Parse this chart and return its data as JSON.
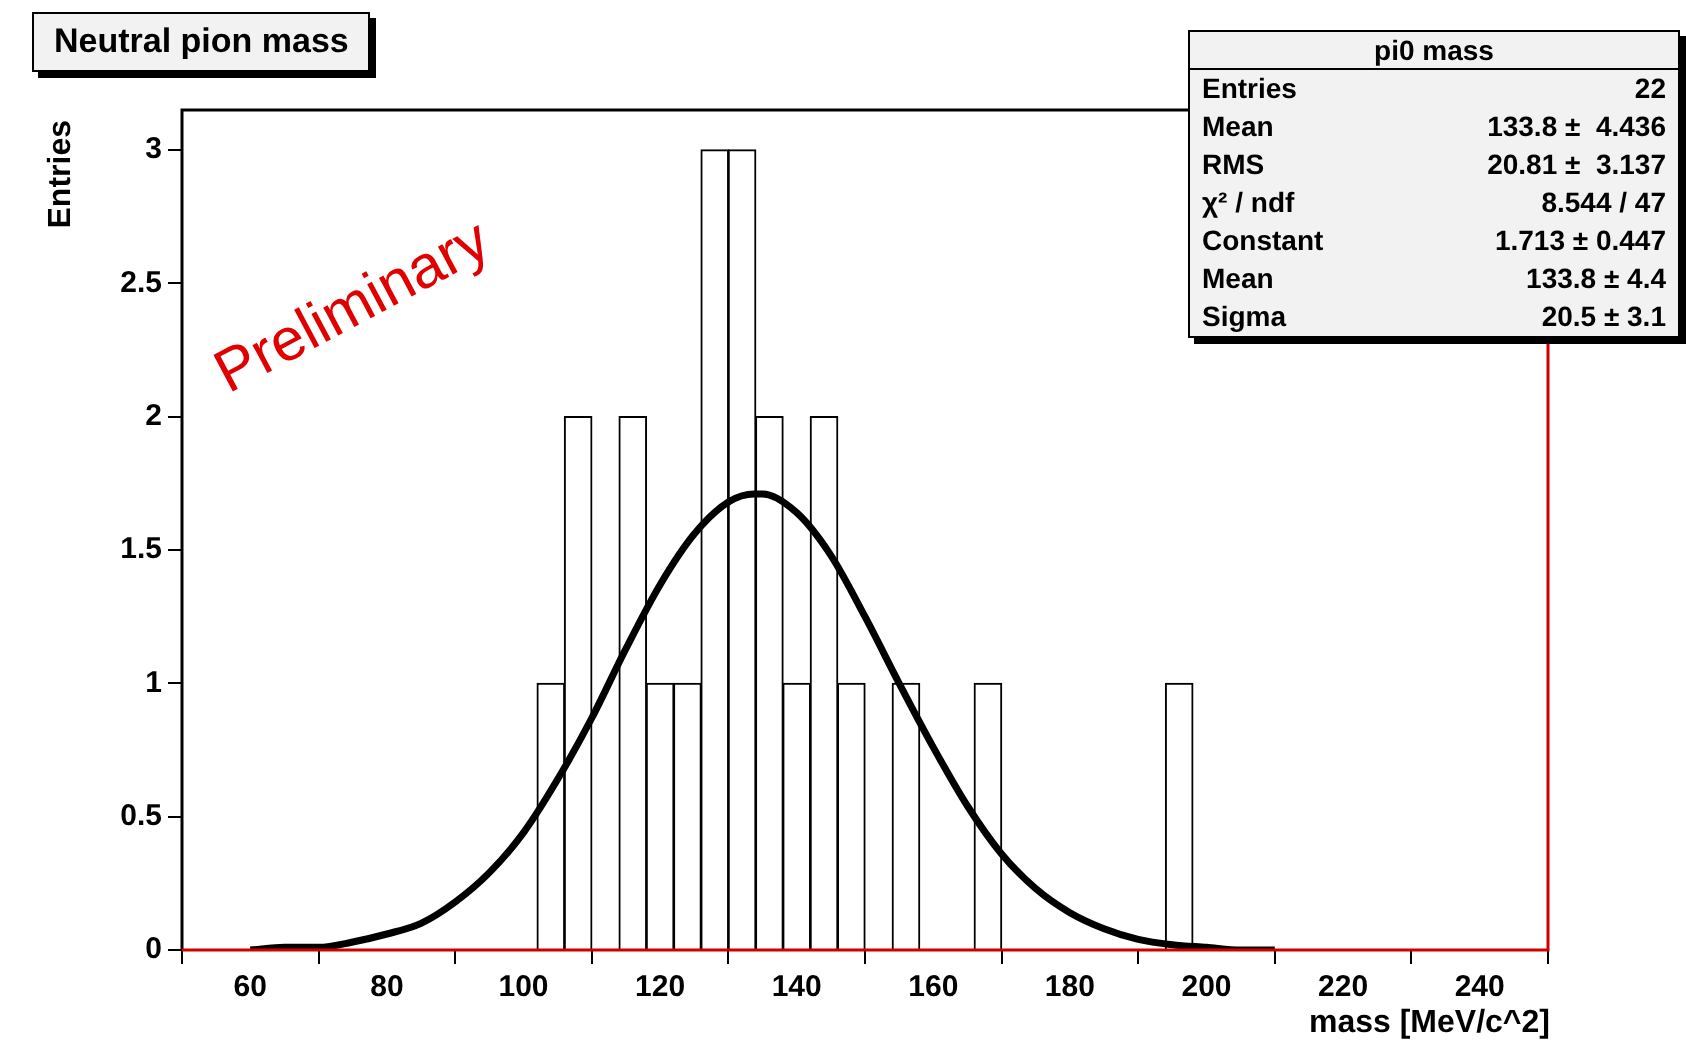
{
  "chart_data": {
    "type": "histogram",
    "title": "Neutral pion mass",
    "xlabel": "mass [MeV/c^2]",
    "ylabel": "Entries",
    "xlim": [
      50,
      250
    ],
    "xticks": [
      60,
      80,
      100,
      120,
      140,
      160,
      180,
      200,
      220,
      240
    ],
    "ylim": [
      0,
      3.15
    ],
    "yticks": [
      0,
      0.5,
      1,
      1.5,
      2,
      2.5,
      3
    ],
    "grid": false,
    "legend": false,
    "color": "#ffffff",
    "bins": [
      50,
      54,
      58,
      62,
      66,
      70,
      74,
      78,
      82,
      86,
      90,
      94,
      98,
      102,
      106,
      110,
      114,
      118,
      122,
      126,
      130,
      134,
      138,
      142,
      146,
      150,
      154,
      158,
      162,
      166,
      170,
      174,
      178,
      182,
      186,
      190,
      194,
      198,
      202,
      206,
      210,
      214,
      218,
      222,
      226,
      230,
      234,
      238,
      242,
      246,
      250
    ],
    "values": [
      0,
      0,
      0,
      0,
      0,
      0,
      0,
      0,
      0,
      0,
      0,
      0,
      0,
      1,
      2,
      0,
      2,
      1,
      1,
      3,
      3,
      2,
      1,
      2,
      1,
      0,
      1,
      0,
      0,
      1,
      0,
      0,
      0,
      0,
      0,
      0,
      1,
      0,
      0,
      0,
      0,
      0,
      0,
      0,
      0,
      0,
      0,
      0,
      0,
      0
    ],
    "series": [
      {
        "type": "line",
        "color": "#000000",
        "marker": "none",
        "line_style": "solid",
        "x": [
          60,
          65,
          70,
          75,
          80,
          85,
          90,
          95,
          100,
          105,
          110,
          115,
          120,
          125,
          130,
          133.8,
          135,
          140,
          145,
          150,
          155,
          160,
          165,
          170,
          175,
          180,
          185,
          190,
          195,
          200,
          205,
          210
        ],
        "values": [
          0,
          0.01,
          0.01,
          0.03,
          0.06,
          0.1,
          0.18,
          0.29,
          0.44,
          0.64,
          0.87,
          1.13,
          1.37,
          1.56,
          1.68,
          1.71,
          1.71,
          1.64,
          1.48,
          1.25,
          1.0,
          0.76,
          0.54,
          0.36,
          0.23,
          0.14,
          0.08,
          0.04,
          0.02,
          0.01,
          0,
          0
        ]
      }
    ],
    "annotations": [
      "Preliminary",
      "pi0 mass",
      "Entries",
      "22",
      "Mean",
      "133.8 ±  4.436",
      "RMS",
      "20.81 ±  3.137",
      "χ² / ndf",
      "8.544 / 47",
      "Constant",
      "1.713 ± 0.447",
      "Mean",
      "133.8 ± 4.4",
      "Sigma",
      "20.5 ± 3.1"
    ]
  }
}
